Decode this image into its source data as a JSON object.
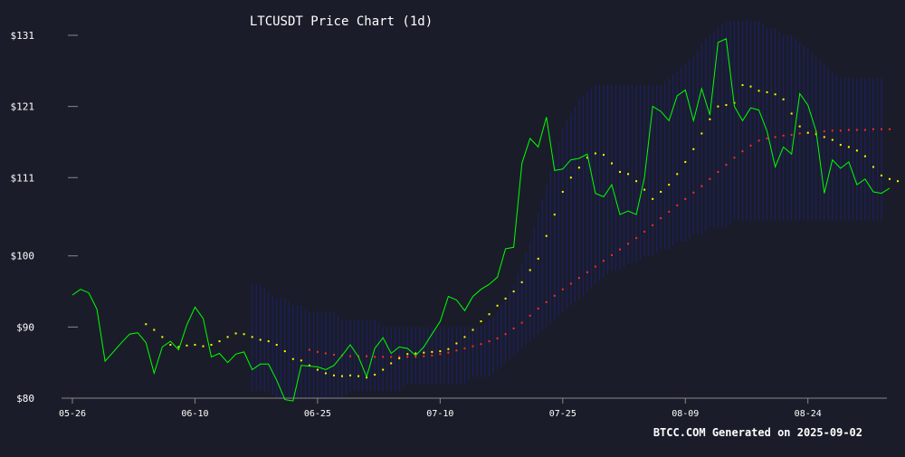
{
  "chart_data": {
    "type": "line",
    "title": "LTCUSDT Price Chart (1d)",
    "footer": "BTCC.COM Generated on 2025-09-02",
    "xlabel": "",
    "ylabel": "",
    "x_ticks": [
      "05-26",
      "06-10",
      "06-25",
      "07-10",
      "07-25",
      "08-09",
      "08-24"
    ],
    "y_ticks": [
      "$80",
      "$90",
      "$100",
      "$111",
      "$121",
      "$131"
    ],
    "x_range": [
      "2025-05-26",
      "2025-09-02"
    ],
    "ylim": [
      80,
      131
    ],
    "y_tick_values": [
      80,
      90,
      100,
      111,
      121,
      131
    ],
    "grid": false,
    "colors": {
      "background": "#1a1d29",
      "axis": "#888888",
      "text": "#ffffff",
      "price": "#00ff00",
      "sma_short": "#ffff00",
      "sma_long": "#ff2a2a",
      "band": "#2020a0"
    },
    "series": [
      {
        "role": "price",
        "style": "line",
        "x_start": "2025-05-26",
        "values": [
          94.5,
          95.3,
          94.8,
          92.5,
          85.2,
          86.5,
          87.8,
          89.0,
          89.2,
          87.8,
          83.5,
          87.2,
          88.0,
          86.8,
          90.3,
          92.8,
          91.2,
          85.8,
          86.3,
          85.0,
          86.2,
          86.5,
          84.0,
          84.8,
          84.8,
          82.5,
          79.8,
          79.6,
          84.6,
          84.5,
          84.4,
          84.0,
          84.6,
          86.0,
          87.5,
          85.8,
          83.0,
          87.0,
          88.5,
          86.3,
          87.2,
          87.0,
          86.0,
          87.2,
          89.0,
          90.8,
          94.3,
          93.8,
          92.3,
          94.3,
          95.3,
          96.0,
          97.0,
          101.0,
          101.2,
          113.0,
          116.5,
          115.3,
          119.5,
          112.0,
          112.2,
          113.5,
          113.7,
          114.3,
          108.8,
          108.3,
          110.0,
          105.8,
          106.3,
          105.8,
          111.0,
          121.0,
          120.3,
          119.0,
          122.5,
          123.3,
          119.0,
          123.5,
          119.8,
          130.0,
          130.5,
          121.0,
          119.0,
          120.8,
          120.5,
          117.5,
          112.5,
          115.3,
          114.3,
          122.8,
          121.2,
          117.5,
          108.8,
          113.5,
          112.3,
          113.2,
          110.0,
          110.8,
          109.0,
          108.8,
          109.5
        ]
      },
      {
        "role": "sma_short",
        "style": "dots",
        "x_start": "2025-06-04",
        "values": [
          90.4,
          89.6,
          88.6,
          87.5,
          87.2,
          87.4,
          87.5,
          87.3,
          87.5,
          88.0,
          88.6,
          89.1,
          89.0,
          88.6,
          88.2,
          88.0,
          87.5,
          86.6,
          85.5,
          85.3,
          84.6,
          84.0,
          83.5,
          83.2,
          83.1,
          83.2,
          83.1,
          82.9,
          83.3,
          84.0,
          84.9,
          85.6,
          86.2,
          86.3,
          86.4,
          86.5,
          86.6,
          86.9,
          87.7,
          88.6,
          89.6,
          90.8,
          91.8,
          93.0,
          94.0,
          95.0,
          96.3,
          98.0,
          99.6,
          102.8,
          105.8,
          109.0,
          111.0,
          112.4,
          113.8,
          114.4,
          114.2,
          113.0,
          111.8,
          111.5,
          110.5,
          109.3,
          108.0,
          109.0,
          110.0,
          111.5,
          113.2,
          115.0,
          117.2,
          119.2,
          121.0,
          121.2,
          121.5,
          124.0,
          123.8,
          123.2,
          123.0,
          122.7,
          122.0,
          120.0,
          118.2,
          117.3,
          117.1,
          116.7,
          116.3,
          115.6,
          115.3,
          114.8,
          114.0,
          112.5,
          111.3,
          110.8,
          110.5
        ]
      },
      {
        "role": "sma_long",
        "style": "dots",
        "x_start": "2025-06-24",
        "values": [
          86.8,
          86.5,
          86.3,
          86.1,
          86.0,
          85.9,
          85.9,
          85.9,
          85.8,
          85.8,
          85.8,
          85.8,
          85.8,
          85.8,
          85.9,
          86.0,
          86.2,
          86.4,
          86.7,
          87.0,
          87.3,
          87.6,
          88.0,
          88.4,
          89.0,
          89.8,
          90.6,
          91.6,
          92.6,
          93.5,
          94.4,
          95.3,
          96.1,
          96.9,
          97.7,
          98.5,
          99.3,
          100.1,
          100.9,
          101.7,
          102.5,
          103.4,
          104.3,
          105.3,
          106.2,
          107.1,
          108.0,
          108.9,
          109.8,
          110.8,
          111.8,
          112.8,
          113.8,
          114.7,
          115.5,
          116.2,
          116.5,
          116.7,
          116.9,
          117.0,
          117.2,
          117.3,
          117.4,
          117.5,
          117.6,
          117.6,
          117.7,
          117.7,
          117.7,
          117.8,
          117.8,
          117.8
        ]
      },
      {
        "role": "band",
        "style": "vertical-hatch",
        "x_start": "2025-06-17",
        "upper": [
          96,
          96,
          95,
          94,
          94,
          93,
          93,
          92,
          92,
          92,
          92,
          91,
          91,
          91,
          91,
          91,
          90,
          90,
          90,
          90,
          90,
          90,
          90,
          90,
          90,
          90,
          90,
          90,
          90,
          91,
          92,
          94,
          96,
          99,
          102,
          106,
          110,
          114,
          118,
          120,
          122,
          123,
          124,
          124,
          124,
          124,
          124,
          124,
          124,
          124,
          124,
          125,
          126,
          127,
          128,
          130,
          131,
          132,
          133,
          133,
          133,
          133,
          133,
          132,
          132,
          131,
          131,
          130,
          129,
          128,
          127,
          126,
          125,
          125,
          125,
          125,
          125,
          125
        ],
        "lower": [
          81,
          81,
          81,
          80,
          80,
          80,
          80,
          80,
          80,
          80,
          80,
          80,
          81,
          81,
          81,
          81,
          81,
          81,
          81,
          82,
          82,
          82,
          82,
          82,
          82,
          82,
          82,
          83,
          83,
          83,
          84,
          85,
          86,
          87,
          88,
          89,
          90,
          91,
          92,
          93,
          94,
          95,
          96,
          97,
          98,
          98,
          99,
          99,
          100,
          100,
          101,
          101,
          102,
          102,
          103,
          103,
          104,
          104,
          104,
          105,
          105,
          105,
          105,
          105,
          105,
          105,
          105,
          105,
          105,
          105,
          105,
          105,
          105,
          105,
          105,
          105,
          105,
          105
        ]
      }
    ]
  }
}
